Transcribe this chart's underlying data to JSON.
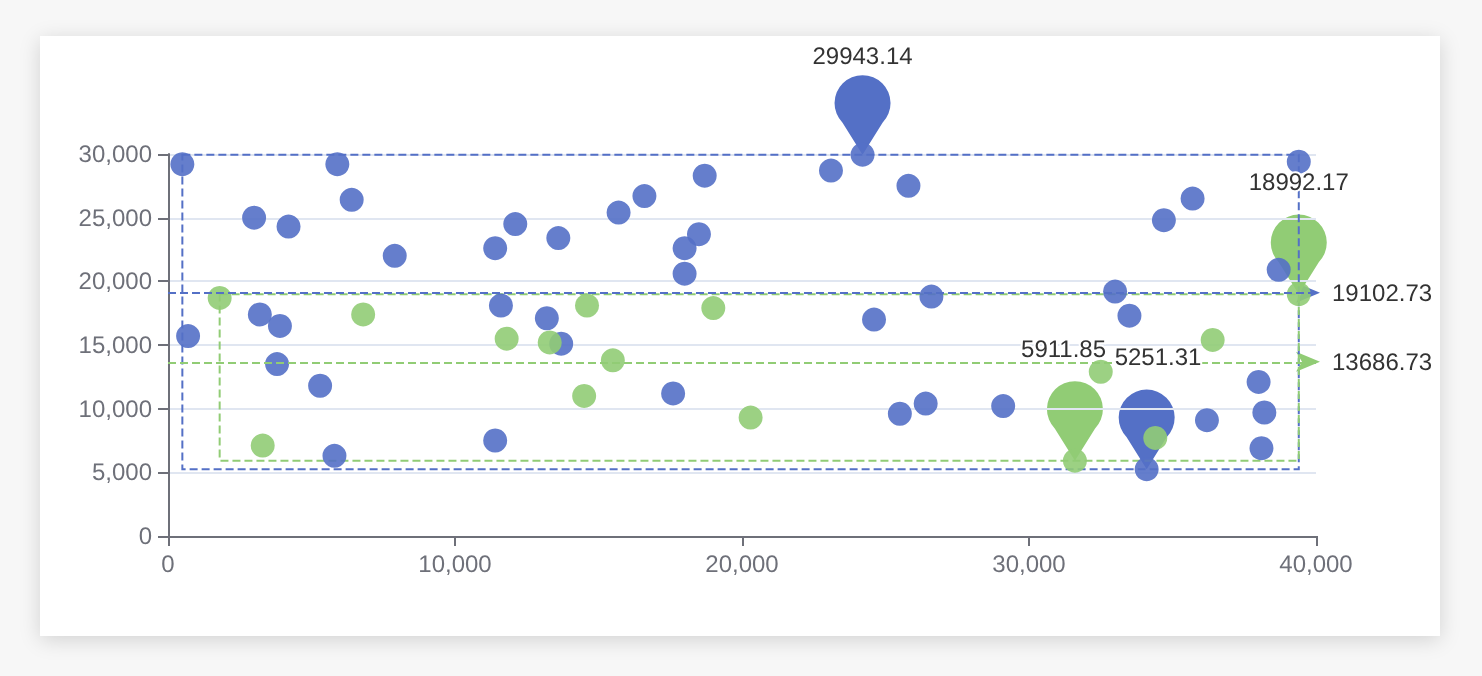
{
  "chart_data": {
    "type": "scatter",
    "xlim": [
      0,
      40000
    ],
    "xticks": [
      0,
      {
        "value": 10000,
        "label": "10,000"
      },
      {
        "value": 20000,
        "label": "20,000"
      },
      {
        "value": 30000,
        "label": "30,000"
      },
      {
        "value": 40000,
        "label": "40,000"
      }
    ],
    "ylim": [
      0,
      30000
    ],
    "yticks": [
      0,
      {
        "value": 5000,
        "label": "5,000"
      },
      {
        "value": 10000,
        "label": "10,000"
      },
      {
        "value": 15000,
        "label": "15,000"
      },
      {
        "value": 20000,
        "label": "20,000"
      },
      {
        "value": 25000,
        "label": "25,000"
      },
      {
        "value": 30000,
        "label": "30,000"
      }
    ],
    "grid": "y",
    "marker": "circle",
    "series": [
      {
        "color": "#5470c6",
        "x": [
          500,
          700,
          3000,
          3200,
          3900,
          3800,
          4200,
          5300,
          5800,
          5900,
          6400,
          7900,
          11400,
          11400,
          11600,
          12100,
          13200,
          13700,
          13600,
          15700,
          16600,
          17600,
          18000,
          18000,
          18500,
          18700,
          23100,
          24200,
          25800,
          26600,
          24600,
          25500,
          26400,
          29100,
          33000,
          33500,
          34700,
          35700,
          38700,
          39400,
          34100,
          36200,
          38000,
          38200,
          38100
        ],
        "values": [
          29200,
          15700,
          25000,
          17400,
          16500,
          13500,
          24300,
          11800,
          6300,
          29200,
          26400,
          22000,
          22600,
          7500,
          18100,
          24500,
          17100,
          15100,
          23400,
          25400,
          26700,
          11200,
          22600,
          20600,
          23700,
          28300,
          28700,
          29943.14,
          27500,
          18800,
          17000,
          9600,
          10400,
          10200,
          19200,
          17300,
          24800,
          26500,
          20900,
          29400,
          5251.31,
          9100,
          12100,
          9700,
          6900
        ]
      },
      {
        "color": "#91cc75",
        "x": [
          1800,
          3300,
          6800,
          11800,
          13300,
          14600,
          15500,
          14500,
          19000,
          20300,
          31600,
          32500,
          36400,
          39400,
          34400
        ],
        "values": [
          18700,
          7100,
          17400,
          15500,
          15200,
          18100,
          13800,
          11000,
          17900,
          9300,
          5911.85,
          12900,
          15400,
          18992.17,
          7700
        ]
      }
    ],
    "ref_lines": [
      {
        "axis": "y",
        "value": 19102.73,
        "label": "19102.73",
        "color": "#5470c6",
        "line_style": "dashed"
      },
      {
        "axis": "y",
        "value": 13686.73,
        "label": "13686.73",
        "color": "#91cc75",
        "line_style": "dashed"
      }
    ],
    "annotations": [
      "29943.14",
      "5251.31",
      "18992.17",
      "5911.85"
    ]
  }
}
